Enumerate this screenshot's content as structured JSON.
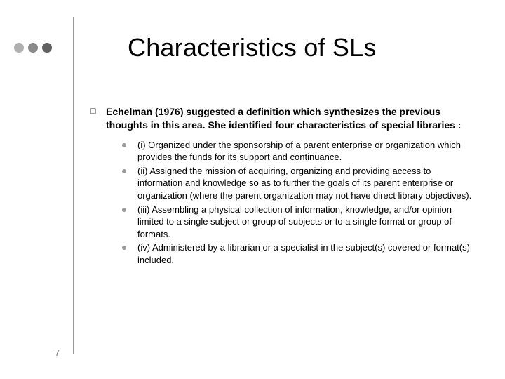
{
  "title": "Characteristics of SLs",
  "intro": "Echelman (1976) suggested a definition which synthesizes the previous thoughts in this area. She identified four characteristics of special libraries :",
  "items": [
    "(i) Organized under the sponsorship of a parent enterprise or organization which provides the funds for its support and continuance.",
    "(ii) Assigned the mission of acquiring, organizing and providing access to information and knowledge so as to further the goals of its parent enterprise or organization (where the parent organization may not have direct library objectives).",
    "(iii) Assembling a physical collection of information, knowledge, and/or opinion limited to a single subject or group of subjects or to a single format or group of formats.",
    "(iv) Administered by a librarian or a specialist in the subject(s) covered or format(s) included."
  ],
  "page_number": "7",
  "dot_colors": [
    "#b0b0b0",
    "#8a8a8a",
    "#606060"
  ],
  "vline_color": "#999999",
  "bullet_border_color": "#9a9a9a",
  "sub_bullet_color": "#9a9a9a",
  "title_fontsize": 36,
  "intro_fontsize": 14,
  "sub_fontsize": 13,
  "background_color": "#ffffff"
}
